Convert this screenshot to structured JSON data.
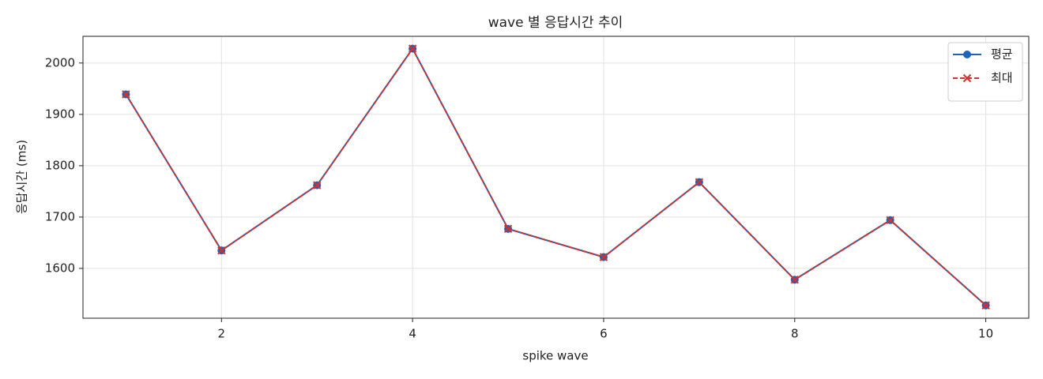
{
  "chart_data": {
    "type": "line",
    "title": "wave 별 응답시간 추이",
    "x_label": "spike wave",
    "y_label": "응답시간 (ms)",
    "x": [
      1,
      2,
      3,
      4,
      5,
      6,
      7,
      8,
      9,
      10
    ],
    "series": [
      {
        "name": "평균",
        "color": "#1f63b6",
        "marker": "o",
        "linestyle": "solid",
        "values": [
          1939,
          1635,
          1762,
          2028,
          1677,
          1622,
          1768,
          1578,
          1694,
          1528
        ]
      },
      {
        "name": "최대",
        "color": "#d0322d",
        "marker": "x",
        "linestyle": "dashed",
        "values": [
          1939,
          1635,
          1762,
          2028,
          1677,
          1622,
          1768,
          1578,
          1694,
          1528
        ]
      }
    ],
    "xlim": [
      0.55,
      10.45
    ],
    "xticks": [
      2,
      4,
      6,
      8,
      10
    ],
    "ylim": [
      1503,
      2052
    ],
    "yticks": [
      1600,
      1700,
      1800,
      1900,
      2000
    ],
    "grid": true,
    "legend": "upper right"
  }
}
